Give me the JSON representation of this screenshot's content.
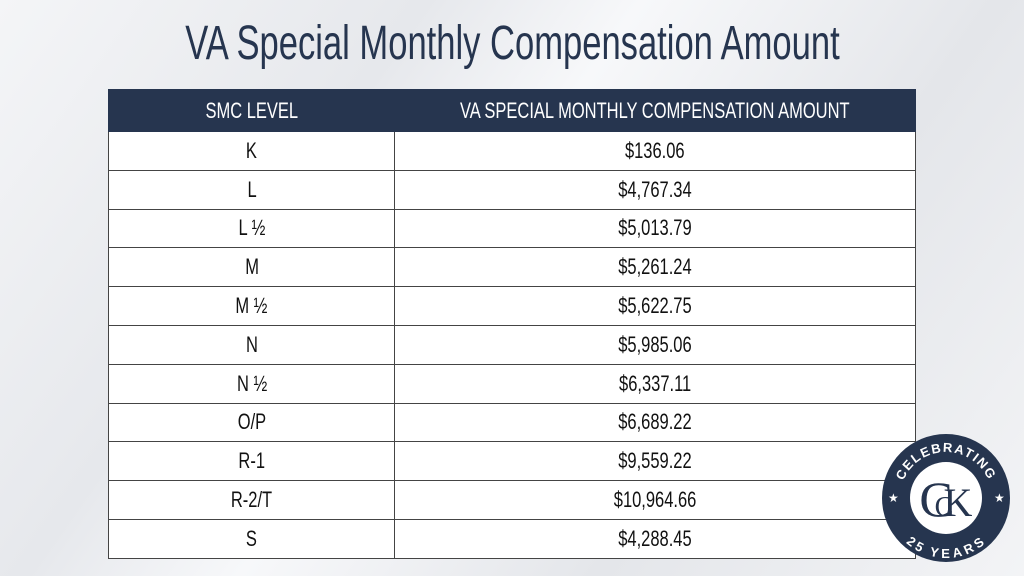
{
  "title": "VA Special Monthly Compensation Amount",
  "table": {
    "headers": [
      "SMC LEVEL",
      "VA SPECIAL MONTHLY COMPENSATION AMOUNT"
    ],
    "rows": [
      [
        "K",
        "$136.06"
      ],
      [
        "L",
        "$4,767.34"
      ],
      [
        "L ½",
        "$5,013.79"
      ],
      [
        "M",
        "$5,261.24"
      ],
      [
        "M ½",
        "$5,622.75"
      ],
      [
        "N",
        "$5,985.06"
      ],
      [
        "N ½",
        "$6,337.11"
      ],
      [
        "O/P",
        "$6,689.22"
      ],
      [
        "R-1",
        "$9,559.22"
      ],
      [
        "R-2/T",
        "$10,964.66"
      ],
      [
        "S",
        "$4,288.45"
      ]
    ]
  },
  "logo": {
    "top": "CELEBRATING",
    "bottom": "25 YEARS",
    "letters": [
      "C",
      "C",
      "K"
    ]
  }
}
